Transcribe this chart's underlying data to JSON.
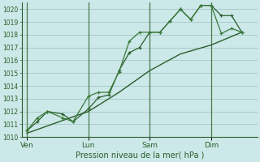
{
  "bg_color": "#cce8e8",
  "grid_color": "#aacccc",
  "line_color_dark": "#2a5e2a",
  "line_color_med": "#3a7a3a",
  "xlabel": "Pression niveau de la mer( hPa )",
  "ylim": [
    1010,
    1020.5
  ],
  "yticks": [
    1010,
    1011,
    1012,
    1013,
    1014,
    1015,
    1016,
    1017,
    1018,
    1019,
    1020
  ],
  "xtick_labels": [
    "Ven",
    "Lun",
    "Sam",
    "Dim"
  ],
  "xtick_positions": [
    0,
    24,
    48,
    72
  ],
  "xlim": [
    -2,
    90
  ],
  "vline_positions": [
    0,
    24,
    48,
    72
  ],
  "series1_x": [
    0,
    4,
    8,
    14,
    18,
    24,
    28,
    32,
    36,
    40,
    44,
    48,
    52,
    56,
    60,
    64,
    68,
    72,
    76,
    80,
    84
  ],
  "series1_y": [
    1010.5,
    1011.2,
    1012.0,
    1011.8,
    1011.2,
    1012.2,
    1013.1,
    1013.3,
    1015.2,
    1016.6,
    1017.0,
    1018.2,
    1018.2,
    1019.1,
    1020.0,
    1019.2,
    1020.3,
    1020.3,
    1019.5,
    1019.5,
    1018.2
  ],
  "series2_x": [
    0,
    4,
    8,
    14,
    18,
    24,
    28,
    32,
    36,
    40,
    44,
    48,
    52,
    56,
    60,
    64,
    68,
    72,
    76,
    80,
    84
  ],
  "series2_y": [
    1010.5,
    1011.5,
    1012.0,
    1011.5,
    1011.2,
    1013.2,
    1013.5,
    1013.5,
    1015.1,
    1017.5,
    1018.2,
    1018.2,
    1018.2,
    1019.1,
    1020.0,
    1019.2,
    1020.3,
    1020.3,
    1018.1,
    1018.5,
    1018.2
  ],
  "series3_x": [
    0,
    14,
    24,
    36,
    48,
    60,
    72,
    84
  ],
  "series3_y": [
    1010.3,
    1011.3,
    1012.0,
    1013.5,
    1015.2,
    1016.5,
    1017.2,
    1018.2
  ]
}
